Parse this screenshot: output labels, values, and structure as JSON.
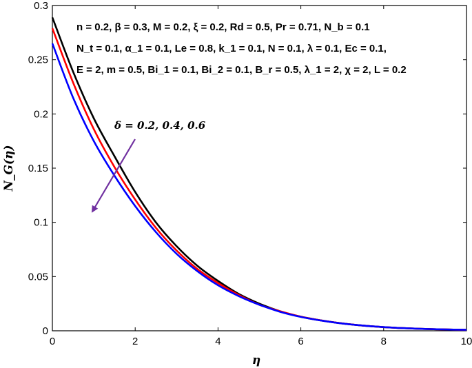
{
  "chart_data": {
    "type": "line",
    "title": "",
    "xlabel": "η",
    "ylabel": "N_G(η)",
    "xlim": [
      0,
      10
    ],
    "ylim": [
      0,
      0.3
    ],
    "xticks": [
      "0",
      "2",
      "4",
      "6",
      "8",
      "10"
    ],
    "yticks": [
      "0",
      "0.05",
      "0.1",
      "0.15",
      "0.2",
      "0.25",
      "0.3"
    ],
    "grid": false,
    "legend": "none",
    "parameter_lines": [
      "n = 0.2, β = 0.3, M = 0.2, ξ = 0.2, Rd = 0.5, Pr = 0.71, N_b = 0.1",
      "N_t = 0.1, α_1 = 0.1, Le = 0.8, k_1 = 0.1, N = 0.1, λ = 0.1, Ec = 0.1,",
      "E = 2, m = 0.5, Bi_1 = 0.1, Bi_2 = 0.1, B_r = 0.5, λ_1 = 2, χ = 2, L = 0.2"
    ],
    "annotation": "δ = 0.2, 0.4, 0.6",
    "arrow_color": "#7030a0",
    "series": [
      {
        "color": "#000000",
        "x": [
          0,
          0.5,
          1,
          1.5,
          2,
          2.5,
          3,
          3.5,
          4,
          4.5,
          5,
          5.5,
          6,
          6.5,
          7,
          7.5,
          8,
          8.5,
          9,
          9.5,
          10
        ],
        "values": [
          0.289,
          0.239,
          0.196,
          0.161,
          0.128,
          0.1,
          0.078,
          0.06,
          0.046,
          0.034,
          0.025,
          0.018,
          0.013,
          0.0095,
          0.0068,
          0.0048,
          0.0034,
          0.0024,
          0.0017,
          0.0012,
          0.0009
        ]
      },
      {
        "color": "#ff0000",
        "x": [
          0,
          0.5,
          1,
          1.5,
          2,
          2.5,
          3,
          3.5,
          4,
          4.5,
          5,
          5.5,
          6,
          6.5,
          7,
          7.5,
          8,
          8.5,
          9,
          9.5,
          10
        ],
        "values": [
          0.279,
          0.229,
          0.186,
          0.151,
          0.121,
          0.095,
          0.074,
          0.057,
          0.044,
          0.033,
          0.024,
          0.018,
          0.013,
          0.0095,
          0.0068,
          0.0048,
          0.0034,
          0.0024,
          0.0017,
          0.0012,
          0.0009
        ]
      },
      {
        "color": "#0000ff",
        "x": [
          0,
          0.5,
          1,
          1.5,
          2,
          2.5,
          3,
          3.5,
          4,
          4.5,
          5,
          5.5,
          6,
          6.5,
          7,
          7.5,
          8,
          8.5,
          9,
          9.5,
          10
        ],
        "values": [
          0.265,
          0.215,
          0.175,
          0.143,
          0.115,
          0.091,
          0.071,
          0.055,
          0.042,
          0.032,
          0.024,
          0.0175,
          0.0128,
          0.0094,
          0.0067,
          0.0048,
          0.0034,
          0.0024,
          0.0017,
          0.0012,
          0.0009
        ]
      }
    ]
  }
}
